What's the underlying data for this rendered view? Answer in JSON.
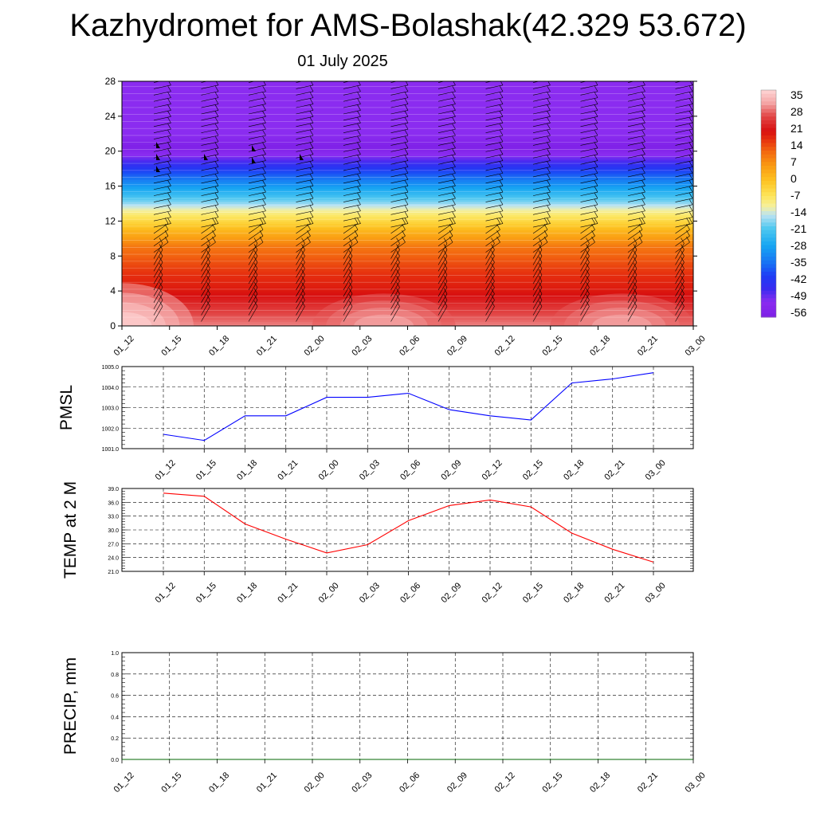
{
  "header": {
    "title": "Kazhydromet for AMS-Bolashak(42.329 53.672)",
    "date": "01 July 2025"
  },
  "colors": {
    "pmsl_line": "#0000ff",
    "temp_line": "#ff0000",
    "precip_line": "#006400",
    "barbs": "#000000",
    "grid": "#000000"
  },
  "chart_data": [
    {
      "type": "heatmap",
      "name_key": "cross-section",
      "x_tick_labels": [
        "01_12",
        "01_15",
        "01_18",
        "01_21",
        "02_00",
        "02_03",
        "02_06",
        "02_09",
        "02_12",
        "02_15",
        "02_18",
        "02_21",
        "03_00"
      ],
      "y_ticks": [
        0,
        4,
        8,
        12,
        16,
        20,
        24,
        28
      ],
      "ylim": [
        0,
        28
      ],
      "colorbar_labels": [
        "35",
        "28",
        "21",
        "14",
        "7",
        "0",
        "-7",
        "-14",
        "-21",
        "-28",
        "-35",
        "-42",
        "-49",
        "-56"
      ],
      "colorbar_range": [
        -63,
        42
      ],
      "temperature_profile": [
        {
          "level": 0,
          "value": 34
        },
        {
          "level": 4,
          "value": 22
        },
        {
          "level": 6,
          "value": 19
        },
        {
          "level": 9,
          "value": 12
        },
        {
          "level": 11,
          "value": 2
        },
        {
          "level": 13,
          "value": -10
        },
        {
          "level": 15,
          "value": -25
        },
        {
          "level": 17,
          "value": -38
        },
        {
          "level": 19,
          "value": -52
        },
        {
          "level": 20.5,
          "value": -62
        },
        {
          "level": 22,
          "value": -56
        },
        {
          "level": 28,
          "value": -56
        }
      ],
      "wind_barbs": "shown",
      "contour_lines": "shown"
    },
    {
      "type": "line",
      "name_key": "pmsl",
      "ylabel": "PMSL",
      "x": [
        "01_12",
        "01_15",
        "01_18",
        "01_21",
        "02_00",
        "02_03",
        "02_06",
        "02_09",
        "02_12",
        "02_15",
        "02_18",
        "02_21",
        "03_00"
      ],
      "values": [
        1001.7,
        1001.4,
        1002.6,
        1002.6,
        1003.5,
        1003.5,
        1003.7,
        1002.9,
        1002.6,
        1002.4,
        1004.2,
        1004.4,
        1004.7
      ],
      "ylim": [
        1001.0,
        1005.0
      ],
      "y_ticks": [
        1001.0,
        1002.0,
        1003.0,
        1004.0,
        1005.0
      ],
      "y_tick_labels": [
        "1001.0",
        "1002.0",
        "1003.0",
        "1004.0",
        "1005.0"
      ],
      "grid": true
    },
    {
      "type": "line",
      "name_key": "temp",
      "ylabel": "TEMP at 2 M",
      "x": [
        "01_12",
        "01_15",
        "01_18",
        "01_21",
        "02_00",
        "02_03",
        "02_06",
        "02_09",
        "02_12",
        "02_15",
        "02_18",
        "02_21",
        "03_00"
      ],
      "values": [
        38.0,
        37.3,
        31.3,
        28.0,
        25.0,
        26.8,
        32.0,
        35.3,
        36.5,
        35.0,
        29.3,
        25.8,
        23.0
      ],
      "ylim": [
        21.0,
        39.0
      ],
      "y_ticks": [
        21,
        24,
        27,
        30,
        33,
        36,
        39
      ],
      "y_tick_labels": [
        "21.0",
        "24.0",
        "27.0",
        "30.0",
        "33.0",
        "36.0",
        "39.0"
      ],
      "grid": true
    },
    {
      "type": "line",
      "name_key": "precip",
      "ylabel": "PRECIP, mm",
      "x": [
        "01_12",
        "01_15",
        "01_18",
        "01_21",
        "02_00",
        "02_03",
        "02_06",
        "02_09",
        "02_12",
        "02_15",
        "02_18",
        "02_21",
        "03_00"
      ],
      "values": [
        0,
        0,
        0,
        0,
        0,
        0,
        0,
        0,
        0,
        0,
        0,
        0,
        0
      ],
      "ylim": [
        0.0,
        1.0
      ],
      "y_ticks": [
        0.0,
        0.2,
        0.4,
        0.6,
        0.8,
        1.0
      ],
      "y_tick_labels": [
        "0.0",
        "0.2",
        "0.4",
        "0.6",
        "0.8",
        "1.0"
      ],
      "x_tick_labels": [
        "01_12",
        "01_15",
        "01_18",
        "01_21",
        "02_00",
        "02_03",
        "02_06",
        "02_09",
        "02_12",
        "02_15",
        "02_18",
        "02_21",
        "03_00"
      ],
      "grid": true
    }
  ]
}
